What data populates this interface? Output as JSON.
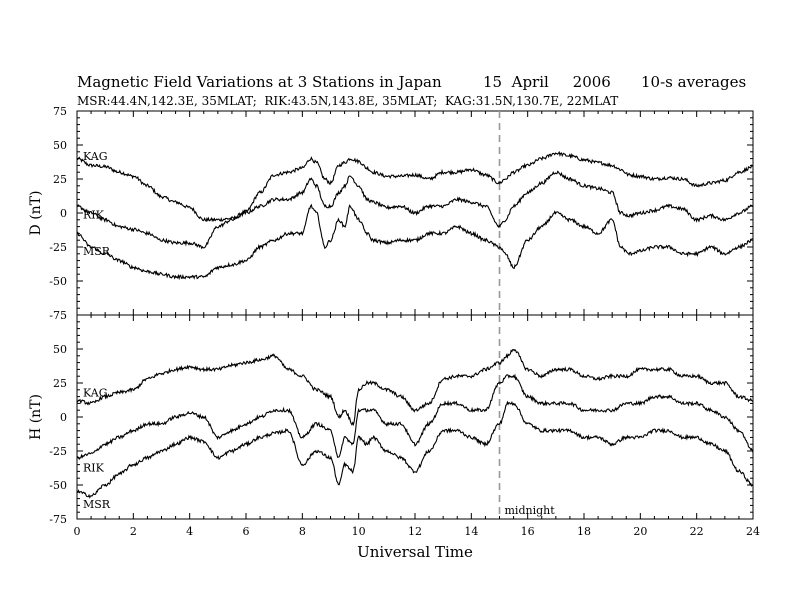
{
  "header": {
    "title": "Magnetic Field Variations at 3 Stations in Japan",
    "date": "15  April     2006",
    "averaging": "10-s averages",
    "stations_info": "MSR:44.4N,142.3E, 35MLAT;  RIK:43.5N,143.8E, 35MLAT;  KAG:31.5N,130.7E, 22MLAT"
  },
  "chart_data": [
    {
      "type": "line",
      "panel": "top",
      "ylabel": "D (nT)",
      "ylim": [
        -75,
        75
      ],
      "yticks": [
        -75,
        -50,
        -25,
        0,
        25,
        50,
        75
      ],
      "xlim": [
        0,
        24
      ],
      "series": [
        {
          "name": "KAG",
          "x": [
            0,
            0.5,
            1,
            1.5,
            2,
            2.5,
            3,
            3.5,
            4,
            4.5,
            5,
            5.5,
            6,
            6.5,
            7,
            7.5,
            8,
            8.3,
            8.5,
            8.8,
            9,
            9.3,
            9.5,
            9.7,
            10,
            10.3,
            10.5,
            11,
            11.5,
            12,
            12.5,
            13,
            13.5,
            14,
            14.5,
            15,
            15.2,
            15.5,
            16,
            16.5,
            17,
            17.5,
            18,
            18.5,
            19,
            19.3,
            19.6,
            20,
            20.5,
            21,
            21.5,
            22,
            22.5,
            23,
            23.5,
            24
          ],
          "values": [
            40,
            35,
            34,
            30,
            27,
            20,
            12,
            8,
            4,
            -5,
            -5,
            -4,
            1,
            15,
            28,
            30,
            33,
            40,
            37,
            25,
            22,
            35,
            37,
            40,
            38,
            33,
            30,
            27,
            27,
            28,
            25,
            30,
            30,
            32,
            28,
            22,
            25,
            30,
            35,
            40,
            44,
            42,
            39,
            37,
            35,
            32,
            28,
            27,
            25,
            26,
            25,
            20,
            22,
            24,
            30,
            34
          ]
        },
        {
          "name": "RIK",
          "x": [
            0,
            0.5,
            1,
            1.5,
            2,
            2.5,
            3,
            3.5,
            4,
            4.5,
            5,
            5.5,
            6,
            6.5,
            7,
            7.5,
            8,
            8.3,
            8.5,
            8.8,
            9,
            9.3,
            9.5,
            9.7,
            10,
            10.3,
            10.5,
            11,
            11.5,
            12,
            12.5,
            13,
            13.5,
            14,
            14.5,
            15,
            15.2,
            15.5,
            16,
            16.5,
            17,
            17.5,
            18,
            18.5,
            19,
            19.3,
            19.6,
            20,
            20.5,
            21,
            21.5,
            22,
            22.5,
            23,
            23.5,
            24
          ],
          "values": [
            5,
            0,
            -5,
            -10,
            -12,
            -15,
            -20,
            -22,
            -22,
            -25,
            -10,
            -5,
            0,
            5,
            10,
            10,
            15,
            25,
            20,
            5,
            5,
            15,
            20,
            27,
            20,
            10,
            8,
            4,
            5,
            0,
            5,
            5,
            10,
            8,
            5,
            -10,
            -5,
            5,
            15,
            22,
            30,
            25,
            20,
            18,
            15,
            0,
            -2,
            0,
            2,
            5,
            3,
            -5,
            -2,
            -5,
            0,
            5
          ]
        },
        {
          "name": "MSR",
          "x": [
            0,
            0.5,
            1,
            1.5,
            2,
            2.5,
            3,
            3.5,
            4,
            4.5,
            5,
            5.5,
            6,
            6.5,
            7,
            7.5,
            8,
            8.3,
            8.5,
            8.8,
            9,
            9.3,
            9.5,
            9.7,
            10,
            10.3,
            10.5,
            11,
            11.5,
            12,
            12.5,
            13,
            13.5,
            14,
            14.5,
            15,
            15.2,
            15.5,
            16,
            16.5,
            17,
            17.5,
            18,
            18.5,
            19,
            19.3,
            19.6,
            20,
            20.5,
            21,
            21.5,
            22,
            22.5,
            23,
            23.5,
            24
          ],
          "values": [
            -15,
            -25,
            -30,
            -35,
            -40,
            -43,
            -45,
            -47,
            -47,
            -47,
            -40,
            -38,
            -35,
            -25,
            -20,
            -15,
            -15,
            5,
            0,
            -25,
            -20,
            -5,
            -10,
            5,
            -5,
            -15,
            -20,
            -22,
            -20,
            -20,
            -15,
            -15,
            -10,
            -15,
            -20,
            -25,
            -30,
            -40,
            -20,
            -10,
            0,
            -5,
            -10,
            -15,
            -5,
            -25,
            -30,
            -28,
            -25,
            -25,
            -30,
            -30,
            -25,
            -30,
            -25,
            -20
          ]
        }
      ]
    },
    {
      "type": "line",
      "panel": "bottom",
      "ylabel": "H (nT)",
      "ylim": [
        -75,
        75
      ],
      "yticks": [
        -75,
        -50,
        -25,
        0,
        25,
        50,
        75
      ],
      "xlim": [
        0,
        24
      ],
      "xticks": [
        0,
        2,
        4,
        6,
        8,
        10,
        12,
        14,
        16,
        18,
        20,
        22,
        24
      ],
      "xlabel": "Universal Time",
      "annotation": "midnight",
      "midnight_x": 15,
      "series": [
        {
          "name": "KAG",
          "x": [
            0,
            0.5,
            1,
            1.5,
            2,
            2.5,
            3,
            3.5,
            4,
            4.5,
            5,
            5.5,
            6,
            6.5,
            7,
            7.5,
            8,
            8.5,
            9,
            9.3,
            9.5,
            9.8,
            10,
            10.3,
            10.5,
            11,
            11.5,
            12,
            12.5,
            13,
            13.5,
            14,
            14.5,
            15,
            15.3,
            15.5,
            16,
            16.5,
            17,
            17.5,
            18,
            18.5,
            19,
            19.5,
            20,
            20.5,
            21,
            21.5,
            22,
            22.5,
            23,
            23.5,
            24
          ],
          "values": [
            12,
            10,
            15,
            18,
            20,
            28,
            32,
            35,
            37,
            35,
            35,
            38,
            40,
            42,
            45,
            35,
            30,
            20,
            15,
            0,
            5,
            -5,
            20,
            25,
            25,
            20,
            15,
            5,
            10,
            28,
            30,
            30,
            35,
            40,
            45,
            50,
            35,
            30,
            35,
            35,
            30,
            28,
            30,
            30,
            35,
            35,
            35,
            30,
            30,
            25,
            25,
            15,
            12
          ]
        },
        {
          "name": "RIK",
          "x": [
            0,
            0.5,
            1,
            1.5,
            2,
            2.5,
            3,
            3.5,
            4,
            4.5,
            5,
            5.5,
            6,
            6.5,
            7,
            7.5,
            8,
            8.5,
            9,
            9.3,
            9.5,
            9.8,
            10,
            10.3,
            10.5,
            11,
            11.5,
            12,
            12.5,
            13,
            13.5,
            14,
            14.5,
            15,
            15.3,
            15.5,
            16,
            16.5,
            17,
            17.5,
            18,
            18.5,
            19,
            19.5,
            20,
            20.5,
            21,
            21.5,
            22,
            22.5,
            23,
            23.5,
            24
          ],
          "values": [
            -30,
            -27,
            -20,
            -15,
            -10,
            -5,
            -5,
            0,
            3,
            0,
            -15,
            -10,
            -5,
            0,
            5,
            5,
            -15,
            -5,
            -10,
            -30,
            -15,
            -20,
            5,
            5,
            5,
            -5,
            -5,
            -20,
            -5,
            10,
            10,
            5,
            5,
            25,
            30,
            30,
            15,
            10,
            10,
            10,
            5,
            5,
            5,
            10,
            10,
            15,
            15,
            10,
            10,
            5,
            0,
            -10,
            -25
          ]
        },
        {
          "name": "MSR",
          "x": [
            0,
            0.5,
            1,
            1.5,
            2,
            2.5,
            3,
            3.5,
            4,
            4.5,
            5,
            5.5,
            6,
            6.5,
            7,
            7.5,
            8,
            8.5,
            9,
            9.3,
            9.5,
            9.8,
            10,
            10.3,
            10.5,
            11,
            11.5,
            12,
            12.5,
            13,
            13.5,
            14,
            14.5,
            15,
            15.3,
            15.5,
            16,
            16.5,
            17,
            17.5,
            18,
            18.5,
            19,
            19.5,
            20,
            20.5,
            21,
            21.5,
            22,
            22.5,
            23,
            23.5,
            24
          ],
          "values": [
            -55,
            -58,
            -50,
            -42,
            -35,
            -30,
            -25,
            -20,
            -15,
            -18,
            -30,
            -25,
            -20,
            -15,
            -12,
            -10,
            -35,
            -25,
            -30,
            -50,
            -35,
            -40,
            -15,
            -20,
            -15,
            -25,
            -30,
            -40,
            -25,
            -10,
            -10,
            -15,
            -20,
            -5,
            10,
            10,
            -5,
            -10,
            -10,
            -10,
            -15,
            -15,
            -20,
            -15,
            -15,
            -10,
            -10,
            -15,
            -15,
            -20,
            -25,
            -40,
            -50
          ]
        }
      ]
    }
  ],
  "colors": {
    "line": "#000000",
    "midnight_line": "#999999",
    "background": "#ffffff"
  }
}
